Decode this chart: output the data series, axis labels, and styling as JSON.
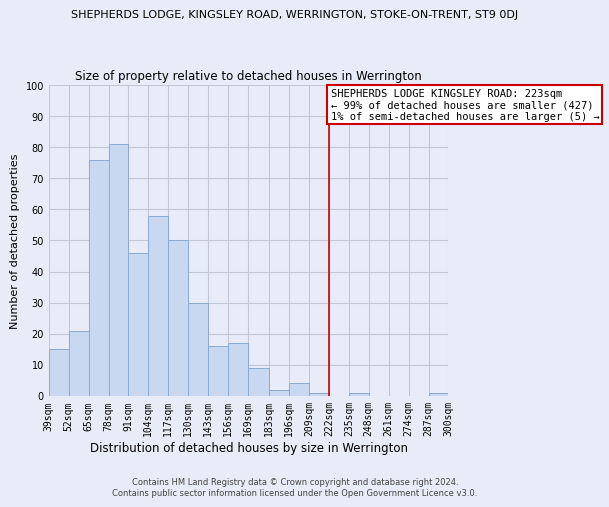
{
  "title": "SHEPHERDS LODGE, KINGSLEY ROAD, WERRINGTON, STOKE-ON-TRENT, ST9 0DJ",
  "subtitle": "Size of property relative to detached houses in Werrington",
  "xlabel": "Distribution of detached houses by size in Werrington",
  "ylabel": "Number of detached properties",
  "bar_edges": [
    39,
    52,
    65,
    78,
    91,
    104,
    117,
    130,
    143,
    156,
    169,
    183,
    196,
    209,
    222,
    235,
    248,
    261,
    274,
    287,
    300
  ],
  "bar_heights": [
    15,
    21,
    76,
    81,
    46,
    58,
    50,
    30,
    16,
    17,
    9,
    2,
    4,
    1,
    0,
    1,
    0,
    0,
    0,
    1
  ],
  "bar_color": "#c8d8f0",
  "bar_edgecolor": "#8aaad0",
  "vline_x": 222,
  "vline_color": "#cc0000",
  "ylim": [
    0,
    100
  ],
  "xlim": [
    39,
    300
  ],
  "annotation_text": "SHEPHERDS LODGE KINGSLEY ROAD: 223sqm\n← 99% of detached houses are smaller (427)\n1% of semi-detached houses are larger (5) →",
  "annotation_box_facecolor": "white",
  "annotation_box_edgecolor": "#cc0000",
  "footer_line1": "Contains HM Land Registry data © Crown copyright and database right 2024.",
  "footer_line2": "Contains public sector information licensed under the Open Government Licence v3.0.",
  "tick_labels": [
    "39sqm",
    "52sqm",
    "65sqm",
    "78sqm",
    "91sqm",
    "104sqm",
    "117sqm",
    "130sqm",
    "143sqm",
    "156sqm",
    "169sqm",
    "183sqm",
    "196sqm",
    "209sqm",
    "222sqm",
    "235sqm",
    "248sqm",
    "261sqm",
    "274sqm",
    "287sqm",
    "300sqm"
  ],
  "yticks": [
    0,
    10,
    20,
    30,
    40,
    50,
    60,
    70,
    80,
    90,
    100
  ],
  "background_color": "#e8ecf8",
  "grid_color": "#c0c8d8",
  "title_fontsize": 8.0,
  "subtitle_fontsize": 8.5,
  "ylabel_fontsize": 8.0,
  "xlabel_fontsize": 8.5,
  "tick_fontsize": 7.0,
  "annotation_fontsize": 7.5,
  "footer_fontsize": 6.0
}
